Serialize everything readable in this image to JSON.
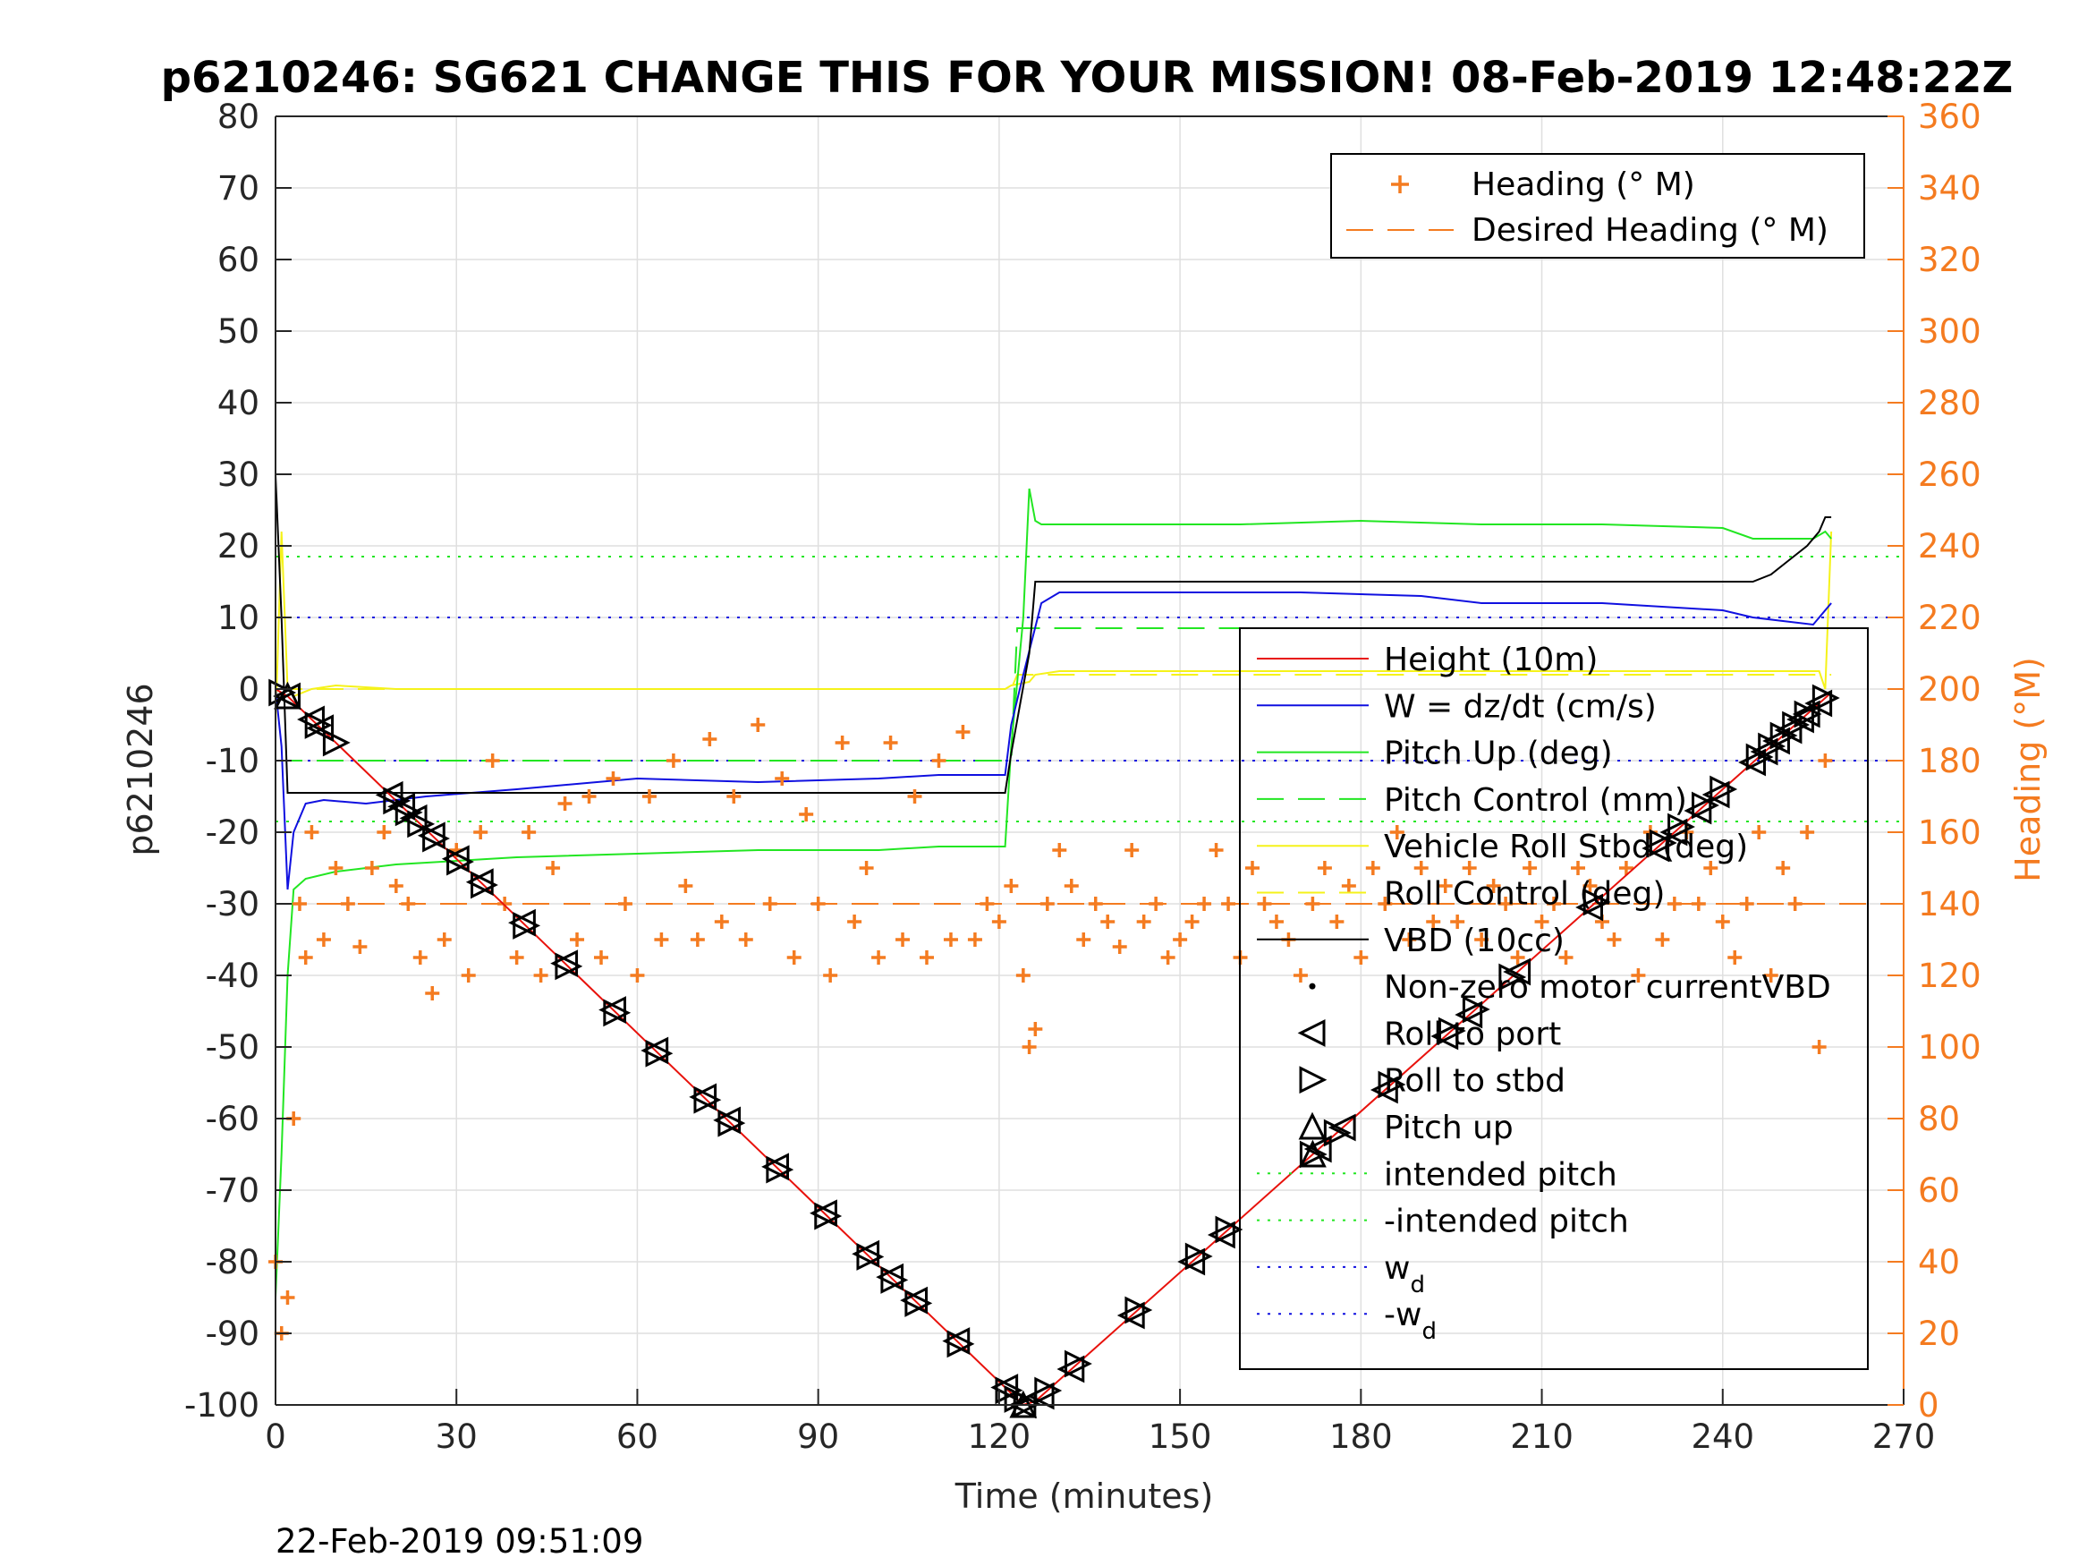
{
  "chart_data": {
    "type": "line",
    "title": "p6210246: SG621 CHANGE THIS FOR YOUR MISSION! 08-Feb-2019 12:48:22Z",
    "xlabel": "Time (minutes)",
    "ylabel_left": "p6210246",
    "ylabel_right": "Heading (°M)",
    "footer_timestamp": "22-Feb-2019 09:51:09",
    "xlim": [
      0,
      270
    ],
    "ylim_left": [
      -100,
      80
    ],
    "ylim_right": [
      0,
      360
    ],
    "x_ticks": [
      0,
      30,
      60,
      90,
      120,
      150,
      180,
      210,
      240,
      270
    ],
    "y_ticks_left": [
      -100,
      -90,
      -80,
      -70,
      -60,
      -50,
      -40,
      -30,
      -20,
      -10,
      0,
      10,
      20,
      30,
      40,
      50,
      60,
      70,
      80
    ],
    "y_ticks_right": [
      0,
      20,
      40,
      60,
      80,
      100,
      120,
      140,
      160,
      180,
      200,
      220,
      240,
      260,
      280,
      300,
      320,
      340,
      360
    ],
    "grid": true,
    "colors": {
      "height": "#e8120c",
      "w": "#1010e0",
      "pitch": "#22e622",
      "roll": "#f5f21a",
      "vbd": "#000000",
      "heading": "#f47b20",
      "axis": "#262626",
      "right_axis": "#f47b20"
    },
    "legend_right_axis": {
      "placement": "top-right",
      "entries": [
        "Heading (° M)",
        "Desired Heading (° M)"
      ]
    },
    "legend_left_axis": {
      "placement": "right",
      "entries": [
        {
          "label": "Height (10m)",
          "sub": ""
        },
        {
          "label": "W = dz/dt (cm/s)",
          "sub": ""
        },
        {
          "label": "Pitch Up (deg)",
          "sub": ""
        },
        {
          "label": "Pitch Control (mm)",
          "sub": ""
        },
        {
          "label": "Vehicle Roll Stbd (deg)",
          "sub": ""
        },
        {
          "label": "Roll Control (deg)",
          "sub": ""
        },
        {
          "label": "VBD (10cc)",
          "sub": ""
        },
        {
          "label": "Non-zero motor currentVBD",
          "sub": ""
        },
        {
          "label": "Roll to port",
          "sub": ""
        },
        {
          "label": "Roll to stbd",
          "sub": ""
        },
        {
          "label": "Pitch up",
          "sub": ""
        },
        {
          "label": "intended pitch",
          "sub": ""
        },
        {
          "label": "-intended pitch",
          "sub": ""
        },
        {
          "label": "w",
          "sub": "d"
        },
        {
          "label": "-w",
          "sub": "d"
        }
      ]
    },
    "series": [
      {
        "name": "Height (10m)",
        "axis": "left",
        "x": [
          0,
          2,
          124,
          126,
          258
        ],
        "y": [
          0,
          -1,
          -100,
          -99.5,
          -0.5
        ]
      },
      {
        "name": "W = dz/dt (cm/s)",
        "axis": "left",
        "x": [
          0,
          1,
          2,
          3,
          5,
          8,
          15,
          25,
          40,
          60,
          80,
          100,
          110,
          121,
          122,
          124,
          127,
          130,
          150,
          170,
          190,
          200,
          220,
          240,
          245,
          250,
          255,
          258
        ],
        "y": [
          0,
          -8,
          -28,
          -20,
          -16,
          -15.5,
          -16,
          -15,
          -14,
          -12.5,
          -13,
          -12.5,
          -12,
          -12,
          -5,
          2,
          12,
          13.5,
          13.5,
          13.5,
          13,
          12,
          12,
          11,
          10,
          9.5,
          9,
          12
        ]
      },
      {
        "name": "Pitch Up (deg)",
        "axis": "left",
        "x": [
          0,
          1,
          2,
          3,
          5,
          10,
          20,
          40,
          60,
          80,
          100,
          110,
          121,
          122,
          124,
          125,
          126,
          127,
          140,
          160,
          180,
          200,
          220,
          240,
          245,
          250,
          255,
          257,
          258
        ],
        "y": [
          -85,
          -65,
          -40,
          -28,
          -26.5,
          -25.5,
          -24.5,
          -23.5,
          -23,
          -22.5,
          -22.5,
          -22,
          -22,
          -8,
          10,
          28,
          23.5,
          23,
          23,
          23,
          23.5,
          23,
          23,
          22.5,
          21,
          21,
          21,
          22,
          21
        ]
      },
      {
        "name": "Pitch Control (mm)",
        "axis": "left",
        "x": [
          0,
          122,
          123,
          258
        ],
        "y": [
          -10,
          -10,
          8.5,
          8.5
        ]
      },
      {
        "name": "Vehicle Roll Stbd (deg)",
        "axis": "left",
        "x": [
          0,
          1,
          2,
          3,
          6,
          10,
          20,
          40,
          60,
          80,
          100,
          120,
          121,
          122,
          125,
          126,
          130,
          140,
          150,
          180,
          210,
          240,
          250,
          256,
          257,
          258
        ],
        "y": [
          -5,
          22,
          0,
          -1,
          0,
          0.5,
          0,
          0,
          0,
          0,
          0,
          0,
          0,
          0.5,
          1,
          2,
          2.5,
          2.5,
          2.5,
          2.5,
          2.5,
          2.5,
          2.5,
          2.5,
          0,
          22
        ]
      },
      {
        "name": "Roll Control (deg)",
        "axis": "left",
        "x": [
          0,
          122,
          123,
          258
        ],
        "y": [
          0,
          0,
          2,
          2
        ]
      },
      {
        "name": "VBD (10cc)",
        "axis": "left",
        "x": [
          0,
          1,
          2,
          121,
          122,
          125,
          126,
          150,
          200,
          235,
          240,
          245,
          248,
          251,
          254,
          256,
          257,
          258
        ],
        "y": [
          30,
          10,
          -14.5,
          -14.5,
          -9,
          5,
          15,
          15,
          15,
          15,
          15,
          15,
          16,
          18,
          20,
          22,
          24,
          24
        ]
      },
      {
        "name": "intended pitch",
        "axis": "left",
        "x": [
          0,
          270
        ],
        "y": [
          18.5,
          18.5
        ]
      },
      {
        "name": "-intended pitch",
        "axis": "left",
        "x": [
          0,
          270
        ],
        "y": [
          -18.5,
          -18.5
        ]
      },
      {
        "name": "w_d",
        "axis": "left",
        "x": [
          0,
          270
        ],
        "y": [
          10,
          10
        ]
      },
      {
        "name": "-w_d",
        "axis": "left",
        "x": [
          0,
          270
        ],
        "y": [
          -10,
          -10
        ]
      },
      {
        "name": "Heading (° M)",
        "axis": "right",
        "x": [
          0,
          1,
          2,
          3,
          4,
          5,
          6,
          8,
          10,
          12,
          14,
          16,
          18,
          20,
          22,
          24,
          26,
          28,
          30,
          32,
          34,
          36,
          38,
          40,
          42,
          44,
          46,
          48,
          50,
          52,
          54,
          56,
          58,
          60,
          62,
          64,
          66,
          68,
          70,
          72,
          74,
          76,
          78,
          80,
          82,
          84,
          86,
          88,
          90,
          92,
          94,
          96,
          98,
          100,
          102,
          104,
          106,
          108,
          110,
          112,
          114,
          116,
          118,
          120,
          122,
          124,
          125,
          126,
          128,
          130,
          132,
          134,
          136,
          138,
          140,
          142,
          144,
          146,
          148,
          150,
          152,
          154,
          156,
          158,
          160,
          162,
          164,
          166,
          168,
          170,
          172,
          174,
          176,
          178,
          180,
          182,
          184,
          186,
          188,
          190,
          192,
          194,
          196,
          198,
          200,
          202,
          204,
          206,
          208,
          210,
          212,
          214,
          216,
          218,
          220,
          222,
          224,
          226,
          228,
          230,
          232,
          234,
          236,
          238,
          240,
          242,
          244,
          246,
          248,
          250,
          252,
          254,
          256,
          257
        ],
        "y": [
          40,
          20,
          30,
          80,
          140,
          125,
          160,
          130,
          150,
          140,
          128,
          150,
          160,
          145,
          140,
          125,
          115,
          130,
          155,
          120,
          160,
          180,
          140,
          125,
          160,
          120,
          150,
          168,
          130,
          170,
          125,
          175,
          140,
          120,
          170,
          130,
          180,
          145,
          130,
          186,
          135,
          170,
          130,
          190,
          140,
          175,
          125,
          165,
          140,
          120,
          185,
          135,
          150,
          125,
          185,
          130,
          170,
          125,
          180,
          130,
          188,
          130,
          140,
          135,
          145,
          120,
          100,
          105,
          140,
          155,
          145,
          130,
          140,
          135,
          128,
          155,
          135,
          140,
          125,
          130,
          135,
          140,
          155,
          140,
          125,
          150,
          140,
          135,
          130,
          120,
          140,
          150,
          135,
          145,
          125,
          150,
          140,
          160,
          130,
          150,
          135,
          145,
          135,
          150,
          130,
          145,
          140,
          125,
          150,
          135,
          140,
          125,
          150,
          145,
          135,
          130,
          150,
          120,
          160,
          130,
          140,
          160,
          140,
          150,
          135,
          125,
          140,
          160,
          120,
          150,
          140,
          160,
          100,
          180
        ]
      },
      {
        "name": "Desired Heading (° M)",
        "axis": "right",
        "x": [
          0,
          270
        ],
        "y": [
          140,
          140
        ]
      }
    ],
    "markers": {
      "roll_to_port_x": [
        2,
        6,
        7.5,
        19,
        21,
        23,
        26,
        30,
        34,
        41,
        48,
        56,
        63,
        71,
        75,
        83,
        91,
        98,
        102,
        106,
        113,
        121,
        124,
        127,
        132,
        142,
        152,
        157,
        173,
        177,
        184,
        194,
        198,
        206,
        218,
        229,
        232,
        236,
        239,
        245,
        247,
        249,
        251,
        253,
        254,
        256
      ],
      "roll_to_stbd_x": [
        1,
        7,
        10,
        20,
        22,
        24,
        26.5,
        30.5,
        34.5,
        41.5,
        48.5,
        56.5,
        63.5,
        71.5,
        75.5,
        83.5,
        91.5,
        98.5,
        102.5,
        106.5,
        113.5,
        121.5,
        123,
        124.5,
        128,
        133,
        143,
        153,
        158,
        172,
        176,
        185,
        195,
        199,
        205,
        219,
        230,
        233,
        237,
        240,
        246,
        248,
        250,
        252,
        254,
        257
      ],
      "pitch_up_x": [
        2,
        124,
        172
      ]
    }
  }
}
